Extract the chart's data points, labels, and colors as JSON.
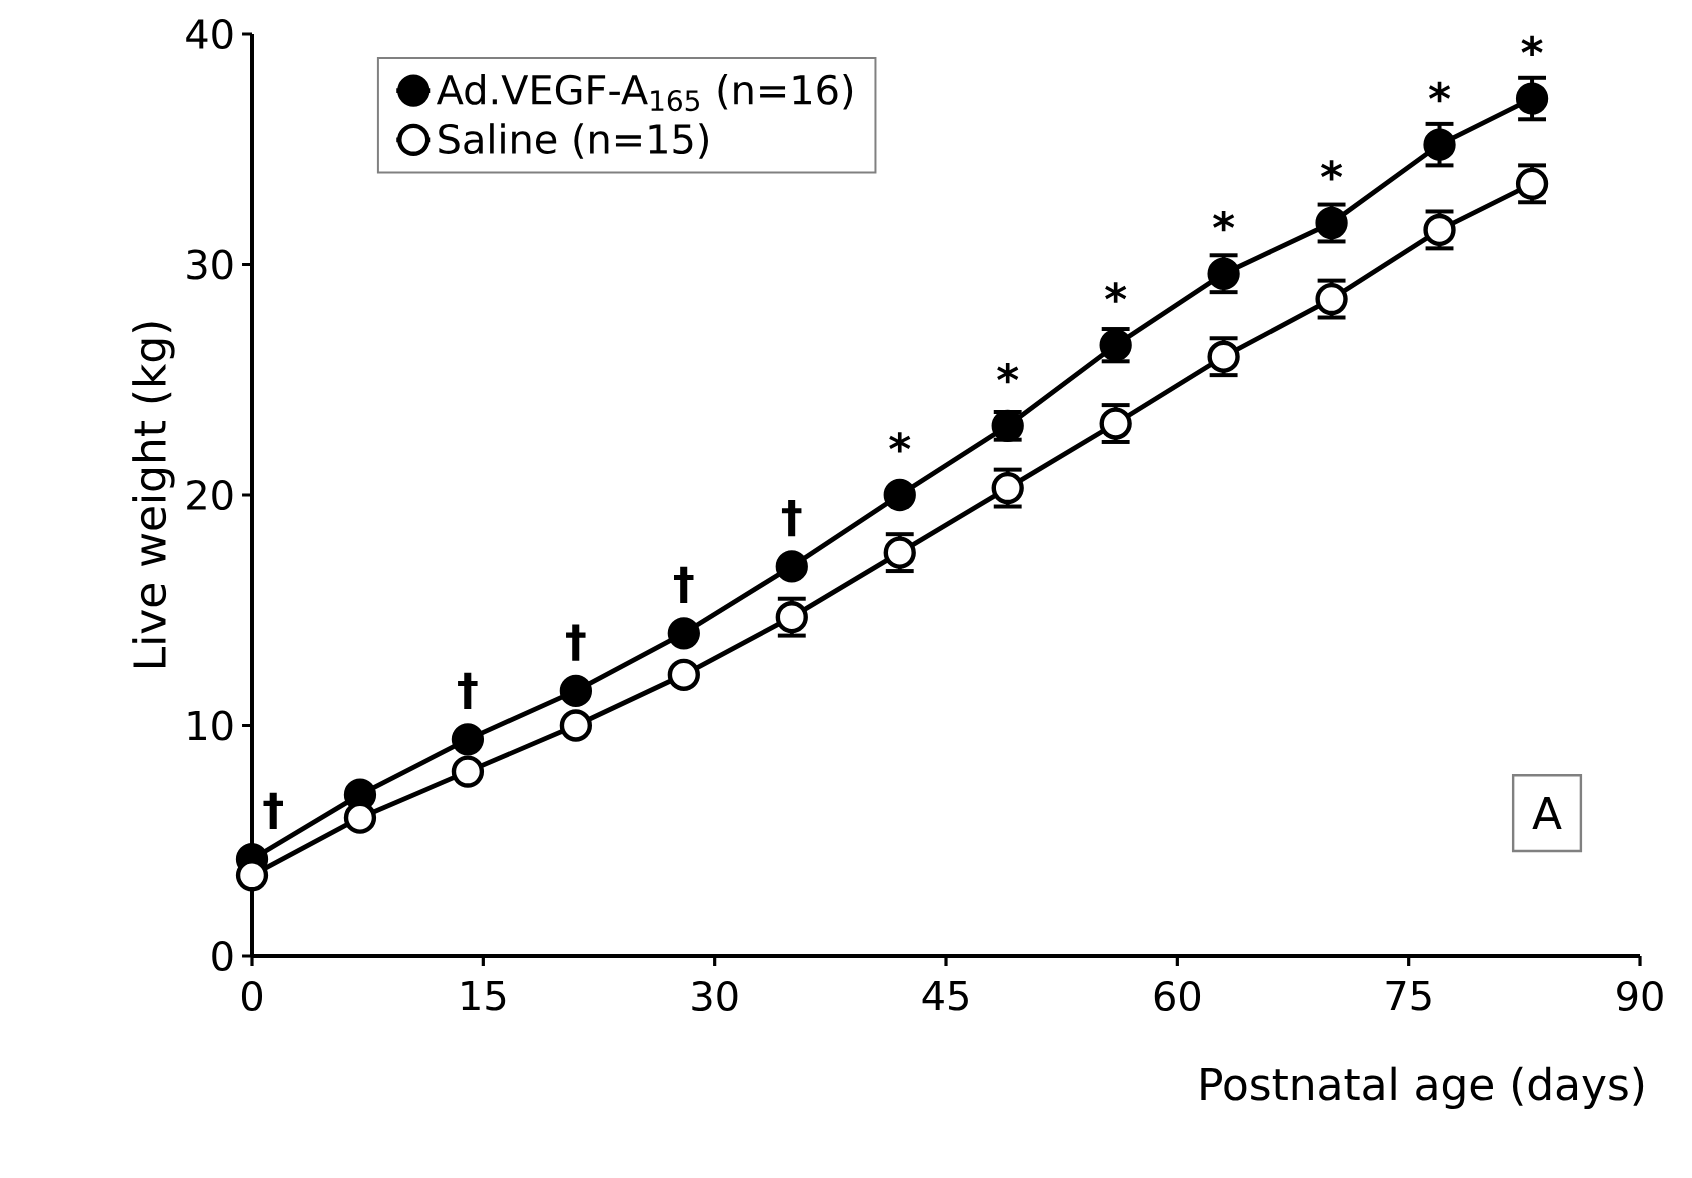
{
  "chart_data": {
    "type": "line",
    "xlabel": "Postnatal age (days)",
    "ylabel": "Live weight (kg)",
    "x": [
      0,
      7,
      14,
      21,
      28,
      35,
      42,
      49,
      56,
      63,
      70,
      77,
      83
    ],
    "series": [
      {
        "name": "Ad.VEGF-A$_{165}$ (n=16)",
        "color": "#000000",
        "values": [
          4.2,
          7.0,
          9.4,
          11.5,
          14.0,
          16.9,
          20.0,
          23.0,
          26.5,
          29.6,
          31.8,
          35.2,
          37.2
        ],
        "errors": [
          null,
          null,
          null,
          null,
          null,
          null,
          null,
          0.6,
          0.7,
          0.8,
          0.8,
          0.9,
          0.9
        ]
      },
      {
        "name": "Saline (n=15)",
        "color": "#ffffff",
        "values": [
          3.5,
          6.0,
          8.0,
          10.0,
          12.2,
          14.7,
          17.5,
          20.3,
          23.1,
          26.0,
          28.5,
          31.5,
          33.5
        ],
        "errors": [
          null,
          null,
          null,
          null,
          null,
          0.8,
          0.8,
          0.8,
          0.8,
          0.8,
          0.8,
          0.8,
          0.8
        ]
      }
    ],
    "xlim": [
      0,
      90
    ],
    "xticks": [
      0,
      15,
      30,
      45,
      60,
      75,
      90
    ],
    "ylim": [
      0,
      40
    ],
    "yticks": [
      0,
      10,
      20,
      30,
      40
    ],
    "marker": "circle",
    "line_style": "solid",
    "legend": "top left",
    "grid": false,
    "annotations": [
      {
        "text": "†",
        "x": 0,
        "y": 4.2
      },
      {
        "text": "†",
        "x": 14,
        "y": 9.4
      },
      {
        "text": "†",
        "x": 21,
        "y": 11.5
      },
      {
        "text": "†",
        "x": 28,
        "y": 14.0
      },
      {
        "text": "†",
        "x": 35,
        "y": 16.9
      },
      {
        "text": "*",
        "x": 42,
        "y": 20.0
      },
      {
        "text": "*",
        "x": 49,
        "y": 23.0
      },
      {
        "text": "*",
        "x": 56,
        "y": 26.5
      },
      {
        "text": "*",
        "x": 63,
        "y": 29.6
      },
      {
        "text": "*",
        "x": 70,
        "y": 31.8
      },
      {
        "text": "*",
        "x": 77,
        "y": 35.2
      },
      {
        "text": "*",
        "x": 83,
        "y": 37.2
      },
      "A"
    ]
  }
}
